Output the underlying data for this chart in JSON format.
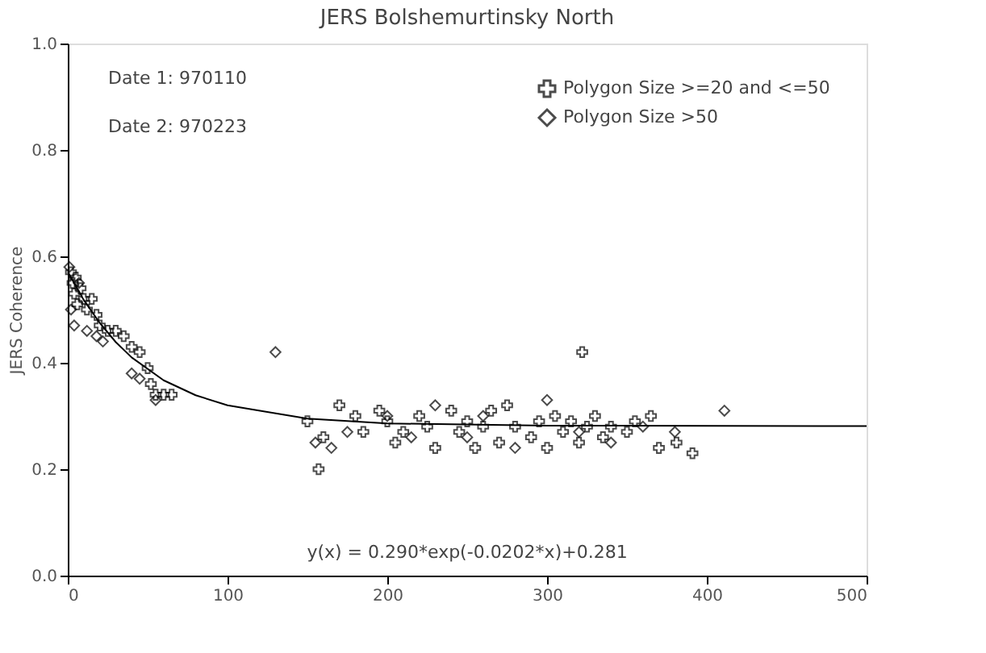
{
  "chart_data": {
    "type": "scatter",
    "title": "JERS    Bolshemurtinsky North",
    "ylabel": "JERS Coherence",
    "xlim": [
      0,
      500
    ],
    "xticks": [
      0,
      100,
      200,
      300,
      400,
      500
    ],
    "ylim": [
      0.0,
      1.0
    ],
    "yticks": [
      {
        "value": 0.0,
        "label": "0.0"
      },
      0.2,
      0.4,
      0.6,
      0.8,
      {
        "value": 1.0,
        "label": "1.0"
      }
    ],
    "grid": false,
    "legend": "top right",
    "annotations": [
      "Date 1: 970110",
      "Date 2: 970223",
      "y(x) = 0.290*exp(-0.0202*x)+0.281"
    ],
    "series": [
      {
        "name": "Polygon Size >=20 and <=50",
        "color": "#000000",
        "marker": "cross",
        "x": [
          2,
          3,
          4,
          5,
          6,
          8,
          10,
          12,
          15,
          18,
          20,
          25,
          30,
          35,
          40,
          45,
          50,
          52,
          55,
          60,
          65,
          150,
          157,
          160,
          170,
          180,
          185,
          195,
          200,
          205,
          210,
          220,
          225,
          230,
          240,
          245,
          250,
          255,
          260,
          265,
          270,
          275,
          280,
          290,
          295,
          300,
          305,
          310,
          315,
          320,
          322,
          325,
          330,
          335,
          340,
          350,
          355,
          365,
          370,
          381,
          391
        ],
        "values": [
          0.57,
          0.55,
          0.53,
          0.56,
          0.51,
          0.54,
          0.52,
          0.5,
          0.52,
          0.49,
          0.47,
          0.46,
          0.46,
          0.45,
          0.43,
          0.42,
          0.39,
          0.36,
          0.34,
          0.34,
          0.34,
          0.29,
          0.2,
          0.26,
          0.32,
          0.3,
          0.27,
          0.31,
          0.29,
          0.25,
          0.27,
          0.3,
          0.28,
          0.24,
          0.31,
          0.27,
          0.29,
          0.24,
          0.28,
          0.31,
          0.25,
          0.32,
          0.28,
          0.26,
          0.29,
          0.24,
          0.3,
          0.27,
          0.29,
          0.25,
          0.42,
          0.28,
          0.3,
          0.26,
          0.28,
          0.27,
          0.29,
          0.3,
          0.24,
          0.25,
          0.23
        ]
      },
      {
        "name": "Polygon Size >50",
        "color": "#000000",
        "marker": "diamond",
        "x": [
          1,
          2,
          4,
          7,
          12,
          18,
          22,
          40,
          45,
          55,
          130,
          155,
          165,
          175,
          200,
          215,
          230,
          250,
          260,
          280,
          300,
          320,
          340,
          360,
          380,
          411
        ],
        "values": [
          0.58,
          0.5,
          0.47,
          0.55,
          0.46,
          0.45,
          0.44,
          0.38,
          0.37,
          0.33,
          0.42,
          0.25,
          0.24,
          0.27,
          0.3,
          0.26,
          0.32,
          0.26,
          0.3,
          0.24,
          0.33,
          0.27,
          0.25,
          0.28,
          0.27,
          0.31
        ]
      },
      {
        "type": "line",
        "color": "#000000",
        "line_style": "solid",
        "x": [
          0,
          10,
          20,
          30,
          40,
          60,
          80,
          100,
          150,
          200,
          300,
          500
        ],
        "values": [
          0.571,
          0.518,
          0.475,
          0.439,
          0.41,
          0.367,
          0.339,
          0.32,
          0.295,
          0.286,
          0.282,
          0.281
        ]
      }
    ]
  }
}
